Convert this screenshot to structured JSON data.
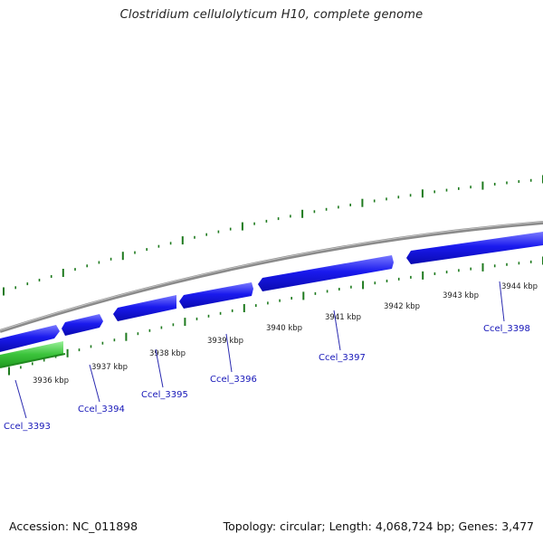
{
  "title": "Clostridium cellulolyticum H10, complete genome",
  "footer": {
    "accession": "Accession: NC_011898",
    "genome_stats": "Topology: circular; Length: 4,068,724 bp; Genes: 3,477"
  },
  "colors": {
    "backbone": "#8a8a8a",
    "forward_gene": "#1a1aee",
    "reverse_gene": "#3cc43c",
    "tick": "#1e7a1e",
    "label_line": "#2a2ab0"
  },
  "kbp_labels": [
    "3936 kbp",
    "3937 kbp",
    "3938 kbp",
    "3939 kbp",
    "3940 kbp",
    "3941 kbp",
    "3942 kbp",
    "3943 kbp",
    "3944 kbp"
  ],
  "genes": [
    {
      "label": "Ccel_3393",
      "strand": "reverse"
    },
    {
      "label": "Ccel_3394",
      "strand": "forward"
    },
    {
      "label": "Ccel_3395",
      "strand": "forward"
    },
    {
      "label": "Ccel_3396",
      "strand": "forward"
    },
    {
      "label": "Ccel_3397",
      "strand": "forward"
    },
    {
      "label": "Ccel_3398",
      "strand": "forward"
    }
  ]
}
